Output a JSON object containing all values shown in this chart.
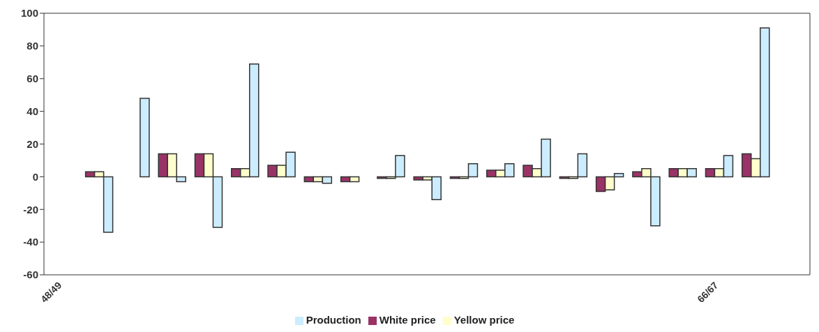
{
  "chart_data": {
    "type": "bar",
    "categories": [
      "48/49",
      null,
      null,
      null,
      null,
      null,
      null,
      null,
      null,
      null,
      null,
      null,
      null,
      null,
      null,
      null,
      null,
      null,
      "66/67",
      null,
      null
    ],
    "series": [
      {
        "name": "White price",
        "color": "#993366",
        "values": [
          null,
          3,
          0,
          14,
          14,
          5,
          7,
          -3,
          -3,
          -1,
          -2,
          -1,
          4,
          7,
          -1,
          -9,
          3,
          5,
          5,
          14,
          null
        ]
      },
      {
        "name": "Yellow price",
        "color": "#ffffcc",
        "values": [
          null,
          3,
          0,
          14,
          14,
          5,
          7,
          -3,
          -3,
          -1,
          -2,
          -1,
          4,
          5,
          -1,
          -8,
          5,
          5,
          5,
          11,
          null
        ]
      },
      {
        "name": "Production",
        "color": "#ccecff",
        "values": [
          null,
          -34,
          48,
          -3,
          -31,
          69,
          15,
          -4,
          0,
          13,
          -14,
          8,
          8,
          23,
          14,
          2,
          -30,
          5,
          13,
          91,
          null
        ]
      }
    ],
    "ylim": [
      -60,
      100
    ],
    "yticks": [
      -60,
      -40,
      -20,
      0,
      20,
      40,
      60,
      80,
      100
    ],
    "grid": false,
    "legend": "bottom"
  }
}
